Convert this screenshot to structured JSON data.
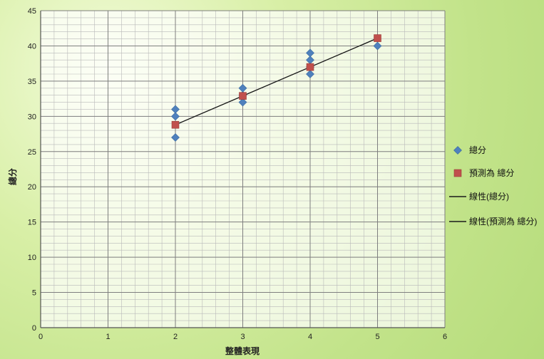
{
  "chart_data": {
    "type": "scatter",
    "title": "",
    "xlabel": "整體表現",
    "ylabel": "總分",
    "xlim": [
      0,
      6
    ],
    "ylim": [
      0,
      45
    ],
    "x_ticks": [
      "0",
      "1",
      "2",
      "3",
      "4",
      "5",
      "6"
    ],
    "y_ticks": [
      "0",
      "5",
      "10",
      "15",
      "20",
      "25",
      "30",
      "35",
      "40",
      "45"
    ],
    "grid": true,
    "legend_position": "right",
    "series": [
      {
        "name": "總分",
        "kind": "points",
        "marker": "diamond",
        "color": "#4f81bd",
        "points": [
          [
            2,
            27
          ],
          [
            2,
            30
          ],
          [
            2,
            31
          ],
          [
            3,
            32
          ],
          [
            3,
            33
          ],
          [
            3,
            34
          ],
          [
            4,
            36
          ],
          [
            4,
            37
          ],
          [
            4,
            38
          ],
          [
            4,
            39
          ],
          [
            5,
            40
          ]
        ]
      },
      {
        "name": "預測為 總分",
        "kind": "points",
        "marker": "square",
        "color": "#c0504d",
        "points": [
          [
            2,
            28.8
          ],
          [
            3,
            32.9
          ],
          [
            4,
            37
          ],
          [
            5,
            41.1
          ]
        ]
      },
      {
        "name": "線性(總分)",
        "kind": "line",
        "color": "#1a1a1a",
        "points": [
          [
            2,
            28.8
          ],
          [
            5,
            41.1
          ]
        ]
      },
      {
        "name": "線性(預測為 總分)",
        "kind": "line",
        "color": "#1a1a1a",
        "points": [
          [
            2,
            28.8
          ],
          [
            5,
            41.1
          ]
        ]
      }
    ]
  }
}
